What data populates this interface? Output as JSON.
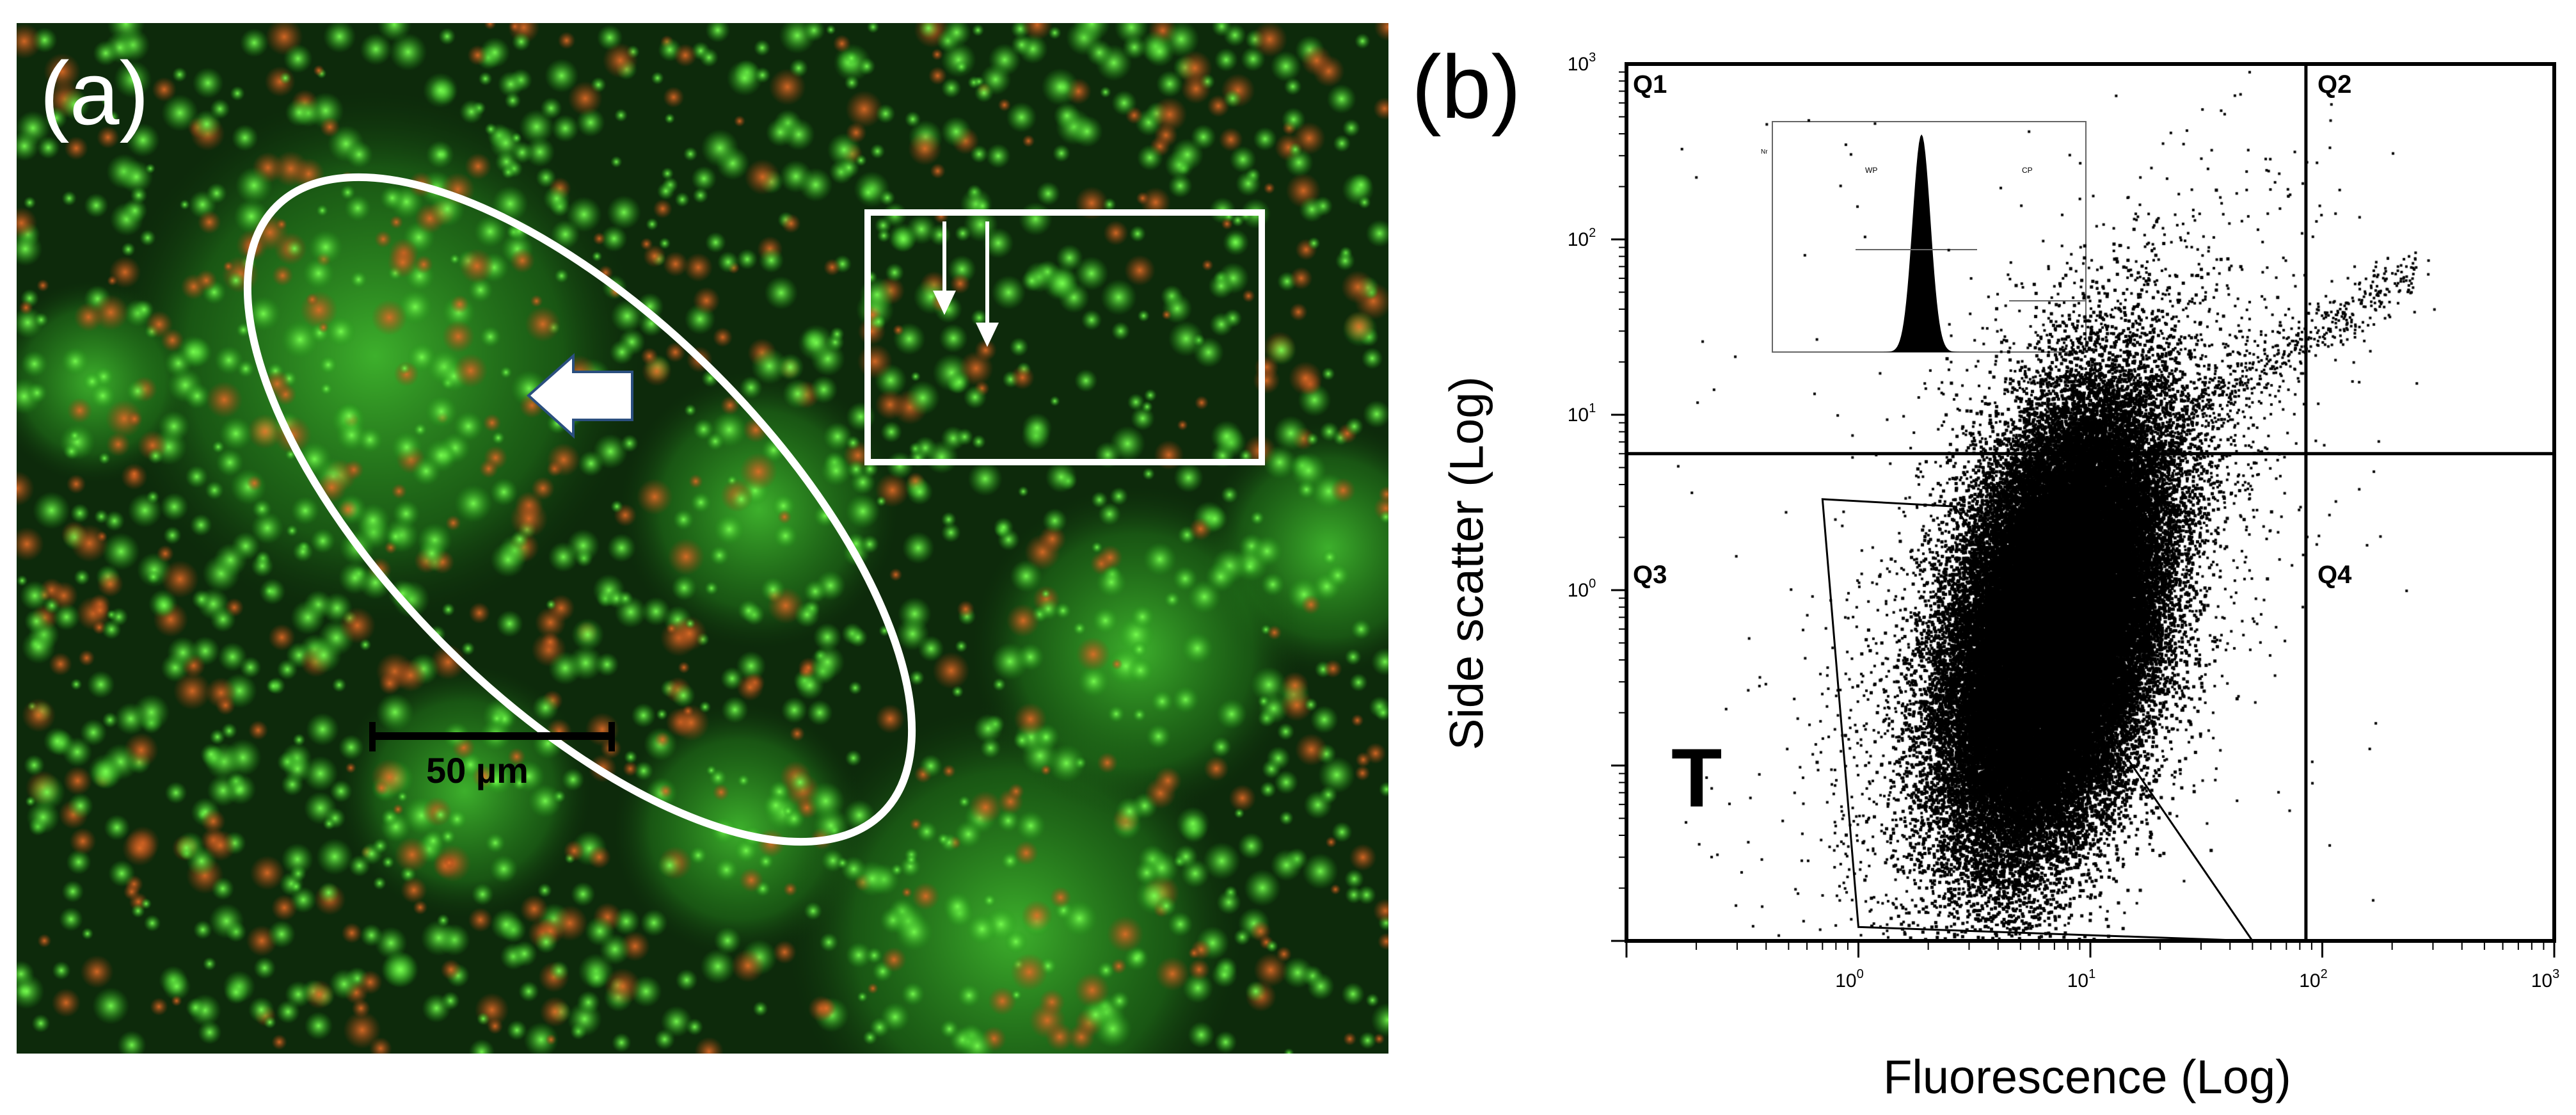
{
  "panels": {
    "a": {
      "label": "(a)",
      "scale_bar_label": "50 µm",
      "colors": {
        "background": "#0d2a0b",
        "green_cells": "#39d62a",
        "red_cells": "#d8632a",
        "annotations": "#ffffff"
      }
    },
    "b": {
      "label": "(b)",
      "gate_label": "T"
    }
  },
  "chart_data": {
    "type": "scatter",
    "title": "",
    "xlabel": "Fluorescence (Log)",
    "ylabel": "Side scatter (Log)",
    "x_scale": "log",
    "y_scale": "log",
    "xlim": [
      0.1,
      1000
    ],
    "ylim": [
      0.01,
      1000
    ],
    "x_ticks": [
      {
        "value": 1,
        "label": "10",
        "exp": "0"
      },
      {
        "value": 10,
        "label": "10",
        "exp": "1"
      },
      {
        "value": 100,
        "label": "10",
        "exp": "2"
      },
      {
        "value": 1000,
        "label": "10",
        "exp": "3"
      }
    ],
    "y_ticks": [
      {
        "value": 1,
        "label": "10",
        "exp": "0"
      },
      {
        "value": 10,
        "label": "10",
        "exp": "1"
      },
      {
        "value": 100,
        "label": "10",
        "exp": "2"
      },
      {
        "value": 1000,
        "label": "10",
        "exp": "3"
      }
    ],
    "quadrant_x": 85,
    "quadrant_y": 6,
    "quadrants": [
      "Q1",
      "Q2",
      "Q3",
      "Q4"
    ],
    "gate": {
      "label": "T",
      "polygon": [
        [
          0.7,
          3.3
        ],
        [
          2.6,
          3.0
        ],
        [
          50,
          0.01
        ],
        [
          1.0,
          0.012
        ]
      ]
    },
    "population": {
      "center_fluorescence": 7,
      "center_side_scatter": 0.6,
      "tail_max_fluorescence": 250,
      "tail_max_side_scatter": 70
    },
    "inset_histogram": {
      "type": "area",
      "peak_fluorescence": 8,
      "gate_labels": [
        "WP",
        "CP"
      ],
      "y_axis_label": "Nr"
    },
    "grid": false,
    "legend": "none",
    "colors": {
      "points": "#000000",
      "axes": "#000000",
      "background": "#ffffff"
    }
  }
}
